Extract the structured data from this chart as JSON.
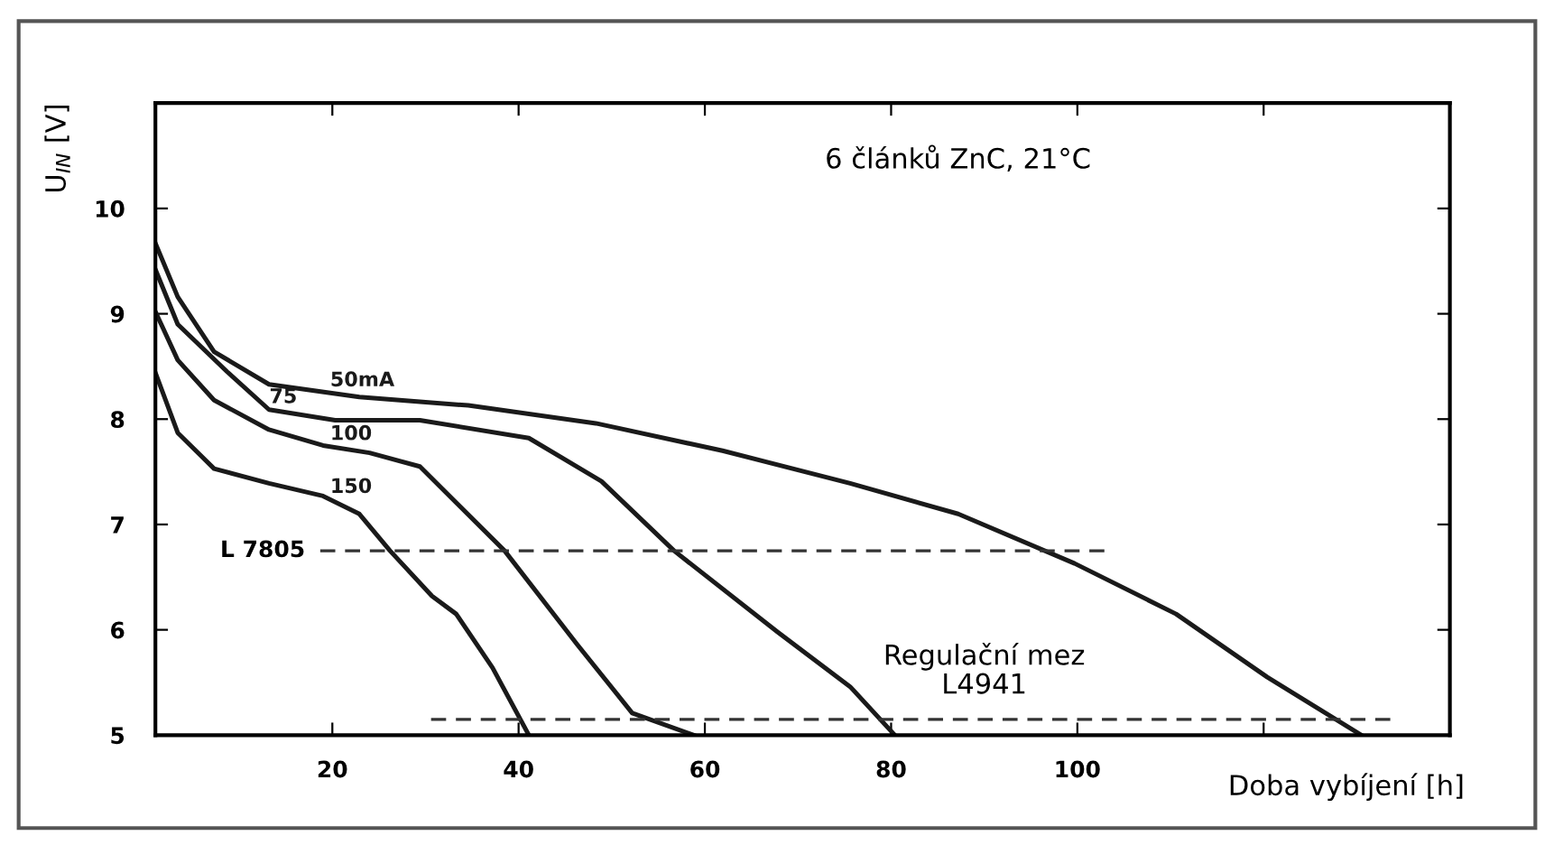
{
  "chart_data": {
    "type": "line",
    "title": "6 článků ZnC, 21°C",
    "xlabel": "Doba vybíjení [h]",
    "ylabel": "U$_{IN}$ [V]",
    "xlim": [
      1,
      140
    ],
    "ylim": [
      5,
      11
    ],
    "xticks": [
      20,
      40,
      60,
      80,
      100,
      {
        "value": 120,
        "label": null
      }
    ],
    "yticks": [
      5,
      6,
      7,
      8,
      9,
      10,
      {
        "value": 11,
        "label": null
      }
    ],
    "grid": false,
    "legend": false,
    "marker": "none",
    "line_style": "solid",
    "series": [
      {
        "name": "50mA",
        "color": "#1a1a1a",
        "x": [
          1,
          3.4,
          7.3,
          13.2,
          22.9,
          34.6,
          48.3,
          61.9,
          75.6,
          87.2,
          99.7,
          110.6,
          120.4,
          130.5
        ],
        "values": [
          9.67,
          9.16,
          8.64,
          8.33,
          8.21,
          8.13,
          7.96,
          7.7,
          7.39,
          7.1,
          6.63,
          6.15,
          5.55,
          5.0
        ]
      },
      {
        "name": "75",
        "color": "#1a1a1a",
        "x": [
          1,
          3.4,
          8.7,
          13.2,
          20.3,
          29.4,
          41.1,
          48.9,
          56.7,
          67.8,
          75.6,
          80.4
        ],
        "values": [
          9.42,
          8.9,
          8.45,
          8.09,
          7.99,
          7.99,
          7.82,
          7.41,
          6.75,
          5.98,
          5.46,
          5.0
        ]
      },
      {
        "name": "100",
        "color": "#1a1a1a",
        "x": [
          1,
          3.4,
          7.3,
          13.2,
          19,
          24,
          29.4,
          38.5,
          46.3,
          52.2,
          58.8
        ],
        "values": [
          9.02,
          8.56,
          8.18,
          7.9,
          7.75,
          7.68,
          7.55,
          6.75,
          5.86,
          5.21,
          5.0
        ]
      },
      {
        "name": "150",
        "color": "#1a1a1a",
        "x": [
          1,
          3.4,
          7.3,
          13.2,
          19,
          22.9,
          26.2,
          30.7,
          33.3,
          37.2,
          41.1
        ],
        "values": [
          8.44,
          7.87,
          7.53,
          7.39,
          7.27,
          7.1,
          6.75,
          6.32,
          6.15,
          5.64,
          5.0
        ]
      },
      {
        "color": "#333333",
        "line_style": "dashed",
        "x": [
          18.7,
          102.9
        ],
        "values": [
          6.75,
          6.75
        ]
      },
      {
        "color": "#333333",
        "line_style": "dashed",
        "x": [
          30.6,
          133.6
        ],
        "values": [
          5.15,
          5.15
        ]
      }
    ],
    "annotations": [
      {
        "text": "L 7805",
        "x": 18.7,
        "y": 6.75
      },
      {
        "text": "Regulační mez\nL4941",
        "x": 90,
        "y": 5.15
      }
    ]
  }
}
